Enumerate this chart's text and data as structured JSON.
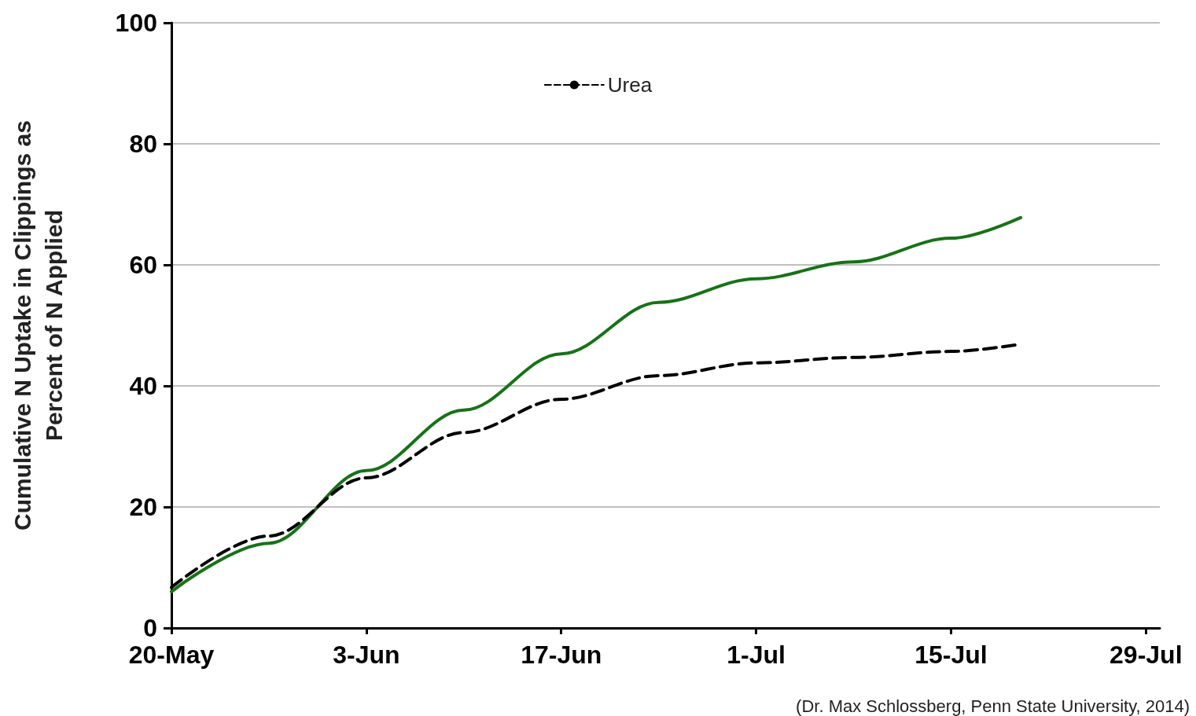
{
  "chart_data": {
    "type": "line",
    "ylabel": "Cumulative N Uptake in Clippings as\nPercent of N Applied",
    "x": [
      "2014-05-20",
      "2014-05-27",
      "2014-06-03",
      "2014-06-10",
      "2014-06-17",
      "2014-06-24",
      "2014-07-01",
      "2014-07-08",
      "2014-07-15",
      "2014-07-20"
    ],
    "series": [
      {
        "color": "#177217",
        "line_style": "solid",
        "values": [
          6,
          14,
          26,
          36,
          45.3,
          53.8,
          57.7,
          60.5,
          64.4,
          67.8
        ]
      },
      {
        "name": "Urea",
        "color": "#000000",
        "line_style": "dashed",
        "values": [
          6.7,
          15.2,
          24.8,
          32.3,
          37.8,
          41.7,
          43.8,
          44.7,
          45.7,
          46.9
        ]
      }
    ],
    "xlim": [
      "2014-05-20",
      "2014-07-30"
    ],
    "xticks": [
      {
        "value": "2014-05-20",
        "label": "20-May"
      },
      {
        "value": "2014-06-03",
        "label": "3-Jun"
      },
      {
        "value": "2014-06-17",
        "label": "17-Jun"
      },
      {
        "value": "2014-07-01",
        "label": "1-Jul"
      },
      {
        "value": "2014-07-15",
        "label": "15-Jul"
      },
      {
        "value": "2014-07-29",
        "label": "29-Jul"
      }
    ],
    "ylim": [
      0,
      100
    ],
    "yticks": [
      0,
      20,
      40,
      60,
      80,
      100
    ],
    "grid": "y",
    "legend": "top",
    "marker": "none",
    "annotations": [
      "(Dr. Max Schlossberg, Penn State University, 2014)"
    ]
  }
}
